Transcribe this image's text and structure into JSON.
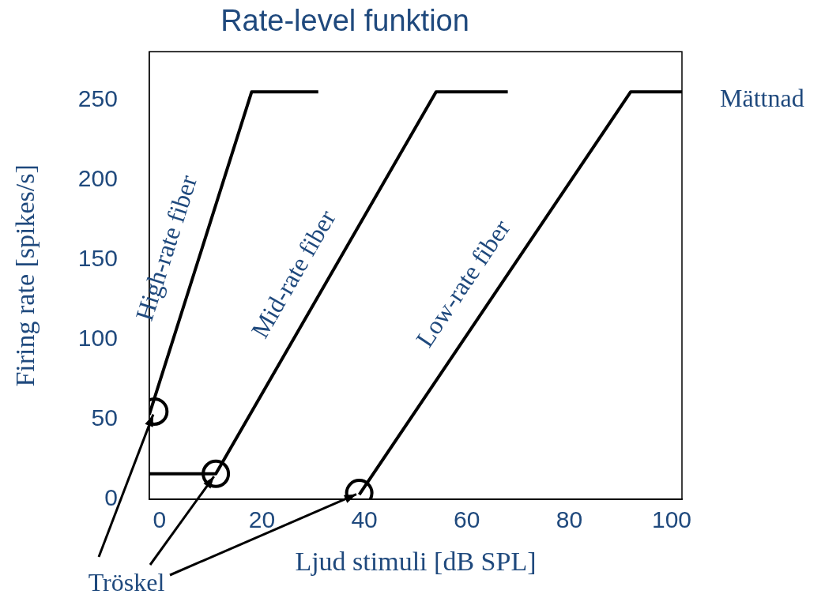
{
  "chart_data": {
    "type": "line",
    "title": "Rate-level funktion",
    "xlabel": "Ljud stimuli [dB SPL]",
    "ylabel": "Firing rate [spikes/s]",
    "xlim": [
      -2,
      102
    ],
    "xticks": [
      0,
      20,
      40,
      60,
      80,
      100
    ],
    "ylim": [
      0,
      280
    ],
    "yticks": [
      0,
      50,
      100,
      150,
      200,
      250
    ],
    "grid": false,
    "legend": false,
    "marker": "none",
    "line_style": "solid",
    "series": [
      {
        "name": "High-rate fiber",
        "color": "#000000",
        "x": [
          -2,
          18,
          31
        ],
        "values": [
          53,
          255,
          255
        ]
      },
      {
        "name": "Mid-rate fiber",
        "color": "#000000",
        "x": [
          -2,
          11,
          54,
          68
        ],
        "values": [
          16,
          16,
          255,
          255
        ]
      },
      {
        "name": "Low-rate fiber",
        "color": "#000000",
        "x": [
          39,
          92,
          102
        ],
        "values": [
          3,
          255,
          255
        ]
      },
      {
        "type": "scatter",
        "marker": "circle",
        "color": "#000000",
        "x": [
          -1,
          11,
          39
        ],
        "values": [
          55,
          16,
          4
        ]
      }
    ],
    "annotations": [
      "Mättnad",
      {
        "text": "Tröskel",
        "x": 11,
        "y": 16
      }
    ]
  }
}
